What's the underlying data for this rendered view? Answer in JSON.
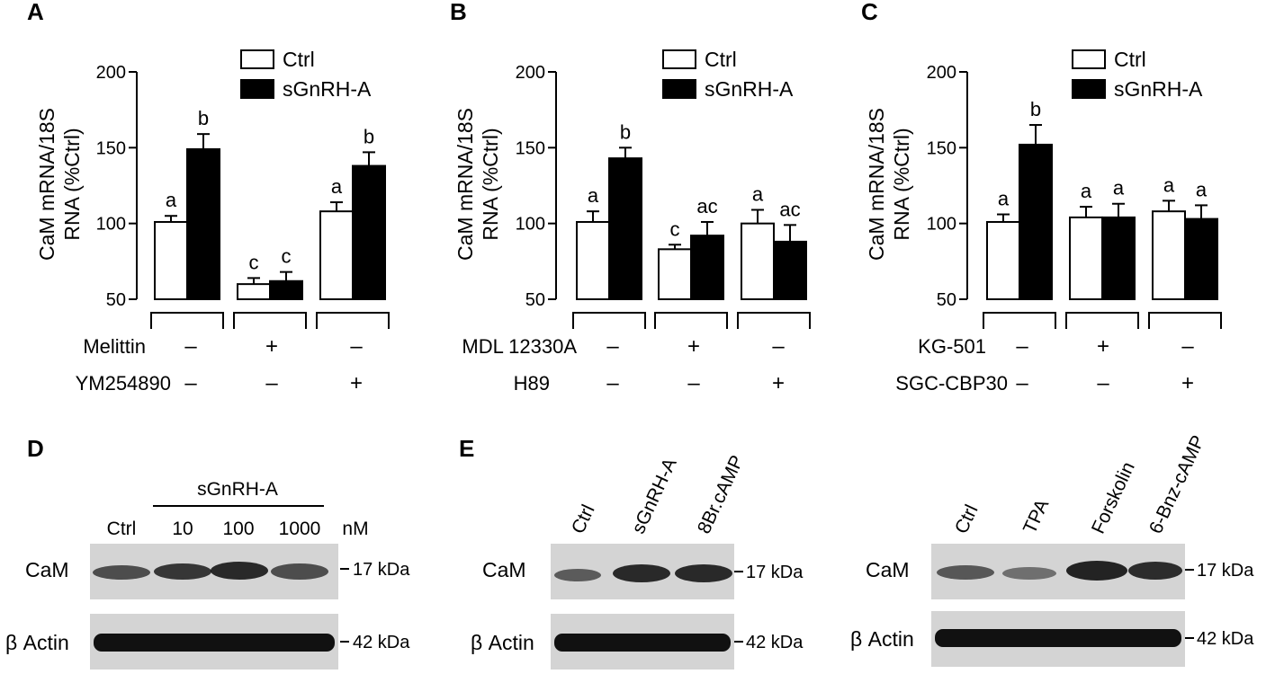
{
  "panels": {
    "A": {
      "letter": "A",
      "legend": {
        "ctrl": "Ctrl",
        "treated": "sGnRH-A"
      },
      "conditions": [
        {
          "label": "Melittin",
          "signs": [
            "–",
            "+",
            "–"
          ]
        },
        {
          "label": "YM254890",
          "signs": [
            "–",
            "–",
            "+"
          ]
        }
      ]
    },
    "B": {
      "letter": "B",
      "legend": {
        "ctrl": "Ctrl",
        "treated": "sGnRH-A"
      },
      "conditions": [
        {
          "label": "MDL 12330A",
          "signs": [
            "–",
            "+",
            "–"
          ]
        },
        {
          "label": "H89",
          "signs": [
            "–",
            "–",
            "+"
          ]
        }
      ]
    },
    "C": {
      "letter": "C",
      "legend": {
        "ctrl": "Ctrl",
        "treated": "sGnRH-A"
      },
      "conditions": [
        {
          "label": "KG-501",
          "signs": [
            "–",
            "+",
            "–"
          ]
        },
        {
          "label": "SGC-CBP30",
          "signs": [
            "–",
            "–",
            "+"
          ]
        }
      ]
    },
    "D": {
      "letter": "D",
      "group_label": "sGnRH-A",
      "lanes": [
        "Ctrl",
        "10",
        "100",
        "1000"
      ],
      "unit": "nM",
      "rows": [
        {
          "label": "CaM",
          "kda": "17 kDa"
        },
        {
          "label": "β Actin",
          "kda": "42 kDa"
        }
      ]
    },
    "E": {
      "letter": "E",
      "left": {
        "lanes": [
          "Ctrl",
          "sGnRH-A",
          "8Br.cAMP"
        ],
        "rows": [
          {
            "label": "CaM",
            "kda": "17 kDa"
          },
          {
            "label": "β Actin",
            "kda": "42 kDa"
          }
        ]
      },
      "right": {
        "lanes": [
          "Ctrl",
          "TPA",
          "Forskolin",
          "6-Bnz-cAMP"
        ],
        "rows": [
          {
            "label": "CaM",
            "kda": "17 kDa"
          },
          {
            "label": "β Actin",
            "kda": "42 kDa"
          }
        ]
      }
    }
  },
  "colors": {
    "ctrl_fill": "#ffffff",
    "treated_fill": "#000000",
    "blot_bg": "#d6d6d6",
    "band": "#1a1a1a"
  },
  "chart_data": [
    {
      "type": "bar",
      "panel": "A",
      "ylabel": "CaM mRNA/18S RNA (%Ctrl)",
      "ylim": [
        50,
        200
      ],
      "yticks": [
        50,
        100,
        150,
        200
      ],
      "categories": [
        "Melittin – / YM254890 –",
        "Melittin + / YM254890 –",
        "Melittin – / YM254890 +"
      ],
      "series": [
        {
          "name": "Ctrl",
          "values": [
            101,
            60,
            108
          ],
          "errors": [
            4,
            4,
            6
          ],
          "letters": [
            "a",
            "c",
            "a"
          ]
        },
        {
          "name": "sGnRH-A",
          "values": [
            149,
            62,
            138
          ],
          "errors": [
            10,
            6,
            9
          ],
          "letters": [
            "b",
            "c",
            "b"
          ]
        }
      ],
      "legend": "top-right"
    },
    {
      "type": "bar",
      "panel": "B",
      "ylabel": "CaM mRNA/18S RNA (%Ctrl)",
      "ylim": [
        50,
        200
      ],
      "yticks": [
        50,
        100,
        150,
        200
      ],
      "categories": [
        "MDL 12330A – / H89 –",
        "MDL 12330A + / H89 –",
        "MDL 12330A – / H89 +"
      ],
      "series": [
        {
          "name": "Ctrl",
          "values": [
            101,
            83,
            100
          ],
          "errors": [
            7,
            3,
            9
          ],
          "letters": [
            "a",
            "c",
            "a"
          ]
        },
        {
          "name": "sGnRH-A",
          "values": [
            143,
            92,
            88
          ],
          "errors": [
            7,
            9,
            11
          ],
          "letters": [
            "b",
            "ac",
            "ac"
          ]
        }
      ],
      "legend": "top-right"
    },
    {
      "type": "bar",
      "panel": "C",
      "ylabel": "CaM mRNA/18S RNA (%Ctrl)",
      "ylim": [
        50,
        200
      ],
      "yticks": [
        50,
        100,
        150,
        200
      ],
      "categories": [
        "KG-501 – / SGC-CBP30 –",
        "KG-501 + / SGC-CBP30 –",
        "KG-501 – / SGC-CBP30 +"
      ],
      "series": [
        {
          "name": "Ctrl",
          "values": [
            101,
            104,
            108
          ],
          "errors": [
            5,
            7,
            7
          ],
          "letters": [
            "a",
            "a",
            "a"
          ]
        },
        {
          "name": "sGnRH-A",
          "values": [
            152,
            104,
            103
          ],
          "errors": [
            13,
            9,
            9
          ],
          "letters": [
            "b",
            "a",
            "a"
          ]
        }
      ],
      "legend": "top-right"
    }
  ]
}
